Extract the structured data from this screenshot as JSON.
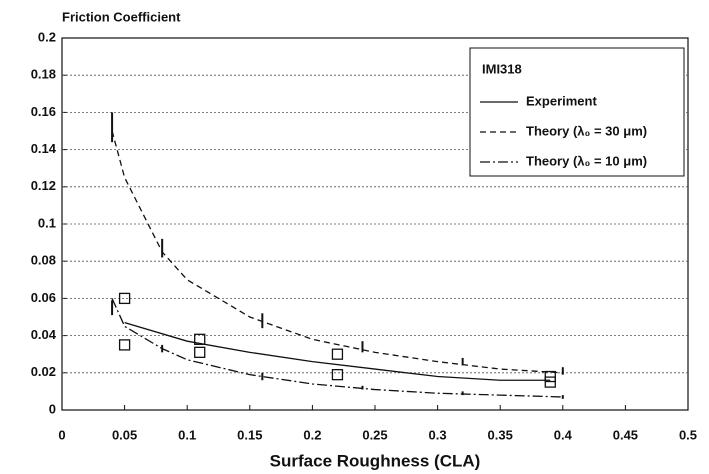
{
  "chart_data": {
    "type": "line",
    "title": "Friction Coefficient",
    "x_label": "Surface Roughness (CLA)",
    "legend_title": "IMI318",
    "legend_position": "upper right",
    "grid": true,
    "xlim": [
      0,
      0.5
    ],
    "xticks": [
      0,
      0.05,
      0.1,
      0.15,
      0.2,
      0.25,
      0.3,
      0.35,
      0.4,
      0.45,
      0.5
    ],
    "ylim": [
      0,
      0.2
    ],
    "yticks": [
      0,
      0.02,
      0.04,
      0.06,
      0.08,
      0.1,
      0.12,
      0.14,
      0.16,
      0.18,
      0.2
    ],
    "series": [
      {
        "name": "Experiment",
        "color": "#111111",
        "style": "solid",
        "x": [
          0.05,
          0.1,
          0.15,
          0.2,
          0.25,
          0.3,
          0.35,
          0.39
        ],
        "values": [
          0.047,
          0.037,
          0.031,
          0.026,
          0.022,
          0.018,
          0.016,
          0.016
        ],
        "points": {
          "x": [
            0.05,
            0.05,
            0.11,
            0.11,
            0.22,
            0.22,
            0.39,
            0.39
          ],
          "values": [
            0.06,
            0.035,
            0.038,
            0.031,
            0.03,
            0.019,
            0.018,
            0.015
          ]
        }
      },
      {
        "name": "Theory (λ₀ = 30 μm)",
        "color": "#111111",
        "style": "dashed",
        "x": [
          0.04,
          0.05,
          0.08,
          0.1,
          0.15,
          0.2,
          0.25,
          0.3,
          0.35,
          0.4
        ],
        "values": [
          0.15,
          0.125,
          0.085,
          0.07,
          0.05,
          0.038,
          0.031,
          0.026,
          0.022,
          0.02
        ],
        "points": {
          "x": [
            0.04,
            0.08,
            0.16,
            0.24,
            0.32,
            0.4
          ],
          "values": [
            0.152,
            0.087,
            0.048,
            0.034,
            0.026,
            0.021
          ],
          "errors": [
            0.008,
            0.005,
            0.004,
            0.003,
            0.002,
            0.002
          ]
        }
      },
      {
        "name": "Theory (λ₀ = 10 μm)",
        "color": "#111111",
        "style": "dashdot",
        "x": [
          0.04,
          0.05,
          0.08,
          0.1,
          0.15,
          0.2,
          0.25,
          0.3,
          0.35,
          0.4
        ],
        "values": [
          0.06,
          0.045,
          0.033,
          0.027,
          0.019,
          0.014,
          0.011,
          0.009,
          0.008,
          0.007
        ],
        "points": {
          "x": [
            0.04,
            0.08,
            0.16,
            0.24,
            0.32,
            0.4
          ],
          "values": [
            0.055,
            0.033,
            0.018,
            0.012,
            0.009,
            0.007
          ],
          "errors": [
            0.004,
            0.002,
            0.002,
            0.001,
            0.001,
            0.001
          ]
        }
      }
    ]
  }
}
